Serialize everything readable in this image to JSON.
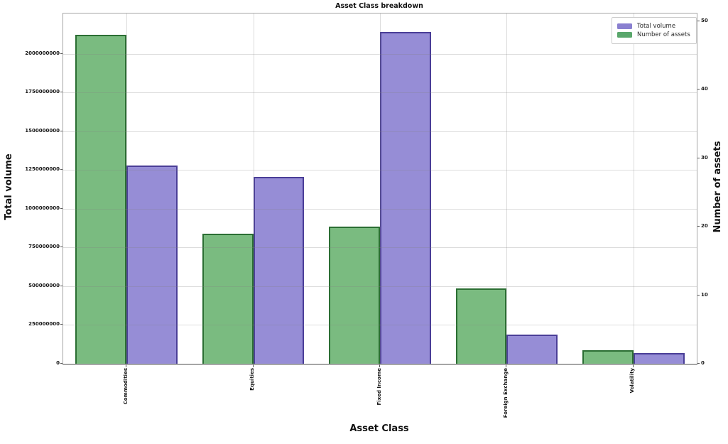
{
  "chart_data": {
    "type": "bar",
    "title": "Asset Class breakdown",
    "xlabel": "Asset Class",
    "ylabel_left": "Total volume",
    "ylabel_right": "Number of assets",
    "grid": true,
    "legend_position": "top-right",
    "categories": [
      "Commodities",
      "Equities",
      "Fixed Income",
      "Foreign Exchange",
      "Volatility"
    ],
    "series": [
      {
        "name": "Total volume",
        "axis": "left",
        "fill_color": "#968dd6",
        "edge_color": "#4a3e97",
        "legend_color": "#8a80d0",
        "values": [
          1280000000,
          1205000000,
          2140000000,
          190000000,
          70000000
        ]
      },
      {
        "name": "Number of assets",
        "axis": "right",
        "fill_color": "#7abb80",
        "edge_color": "#2b6e33",
        "legend_color": "#5aa76c",
        "values": [
          48,
          19,
          20,
          11,
          2
        ]
      }
    ],
    "left_axis": {
      "max": 2260000000,
      "ticks": [
        {
          "label": "0",
          "value": 0
        },
        {
          "label": "250000000",
          "value": 250000000
        },
        {
          "label": "500000000",
          "value": 500000000
        },
        {
          "label": "750000000",
          "value": 750000000
        },
        {
          "label": "1000000000",
          "value": 1000000000
        },
        {
          "label": "1250000000",
          "value": 1250000000
        },
        {
          "label": "1500000000",
          "value": 1500000000
        },
        {
          "label": "1750000000",
          "value": 1750000000
        },
        {
          "label": "2000000000",
          "value": 2000000000
        }
      ]
    },
    "right_axis": {
      "max": 51.15,
      "ticks": [
        {
          "label": "0",
          "value": 0
        },
        {
          "label": "10",
          "value": 10
        },
        {
          "label": "20",
          "value": 20
        },
        {
          "label": "30",
          "value": 30
        },
        {
          "label": "40",
          "value": 40
        },
        {
          "label": "50",
          "value": 50
        }
      ]
    }
  }
}
